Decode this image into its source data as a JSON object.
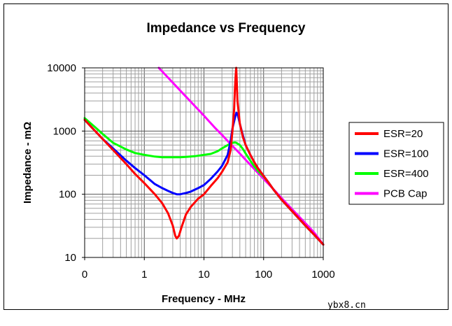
{
  "chart_data": {
    "type": "line",
    "title": "Impedance vs Frequency",
    "xlabel": "Frequency - MHz",
    "ylabel": "Impedance - mΩ",
    "xscale": "log",
    "yscale": "log",
    "xlim": [
      0.1,
      1000
    ],
    "ylim": [
      10,
      10000
    ],
    "x_tick_labels": [
      "0",
      "1",
      "10",
      "100",
      "1000"
    ],
    "x_tick_values": [
      0.1,
      1,
      10,
      100,
      1000
    ],
    "y_tick_labels": [
      "10",
      "100",
      "1000",
      "10000"
    ],
    "y_tick_values": [
      10,
      100,
      1000,
      10000
    ],
    "grid": true,
    "legend_position": "right",
    "series": [
      {
        "name": "ESR=20",
        "color": "#ff0000",
        "points": [
          [
            0.1,
            1500
          ],
          [
            0.15,
            1000
          ],
          [
            0.2,
            750
          ],
          [
            0.3,
            500
          ],
          [
            0.5,
            300
          ],
          [
            0.7,
            210
          ],
          [
            1,
            150
          ],
          [
            1.5,
            100
          ],
          [
            2,
            72
          ],
          [
            2.5,
            50
          ],
          [
            3,
            32
          ],
          [
            3.3,
            22
          ],
          [
            3.5,
            20
          ],
          [
            3.8,
            22
          ],
          [
            4.2,
            30
          ],
          [
            5,
            48
          ],
          [
            6,
            63
          ],
          [
            8,
            85
          ],
          [
            10,
            100
          ],
          [
            13,
            135
          ],
          [
            17,
            180
          ],
          [
            20,
            225
          ],
          [
            25,
            320
          ],
          [
            28,
            500
          ],
          [
            30,
            1000
          ],
          [
            32,
            2200
          ],
          [
            33,
            4500
          ],
          [
            34,
            7500
          ],
          [
            34.7,
            10000
          ],
          [
            35.5,
            6000
          ],
          [
            36.5,
            3000
          ],
          [
            40,
            1300
          ],
          [
            45,
            800
          ],
          [
            50,
            600
          ],
          [
            60,
            420
          ],
          [
            70,
            320
          ],
          [
            80,
            260
          ],
          [
            100,
            195
          ],
          [
            120,
            155
          ],
          [
            150,
            115
          ],
          [
            200,
            82
          ],
          [
            300,
            54
          ],
          [
            500,
            32
          ],
          [
            700,
            23
          ],
          [
            1000,
            16
          ]
        ]
      },
      {
        "name": "ESR=100",
        "color": "#0000ff",
        "points": [
          [
            0.1,
            1500
          ],
          [
            0.15,
            1000
          ],
          [
            0.2,
            750
          ],
          [
            0.3,
            530
          ],
          [
            0.5,
            340
          ],
          [
            0.7,
            260
          ],
          [
            1,
            200
          ],
          [
            1.5,
            145
          ],
          [
            2,
            125
          ],
          [
            2.5,
            113
          ],
          [
            3,
            105
          ],
          [
            3.5,
            100
          ],
          [
            4,
            100
          ],
          [
            5,
            105
          ],
          [
            6,
            110
          ],
          [
            8,
            125
          ],
          [
            10,
            140
          ],
          [
            13,
            175
          ],
          [
            17,
            230
          ],
          [
            20,
            280
          ],
          [
            25,
            420
          ],
          [
            28,
            700
          ],
          [
            30,
            1100
          ],
          [
            33,
            1600
          ],
          [
            35,
            1950
          ],
          [
            37,
            1800
          ],
          [
            40,
            1300
          ],
          [
            45,
            850
          ],
          [
            50,
            600
          ],
          [
            60,
            420
          ],
          [
            70,
            320
          ],
          [
            80,
            260
          ],
          [
            100,
            195
          ],
          [
            120,
            155
          ],
          [
            150,
            115
          ],
          [
            200,
            82
          ],
          [
            300,
            54
          ],
          [
            500,
            32
          ],
          [
            700,
            23
          ],
          [
            1000,
            16
          ]
        ]
      },
      {
        "name": "ESR=400",
        "color": "#00ff00",
        "points": [
          [
            0.1,
            1600
          ],
          [
            0.15,
            1150
          ],
          [
            0.2,
            900
          ],
          [
            0.3,
            650
          ],
          [
            0.5,
            510
          ],
          [
            0.7,
            450
          ],
          [
            1,
            420
          ],
          [
            1.5,
            395
          ],
          [
            2,
            385
          ],
          [
            3,
            385
          ],
          [
            4,
            385
          ],
          [
            5,
            390
          ],
          [
            7,
            400
          ],
          [
            10,
            420
          ],
          [
            13,
            435
          ],
          [
            17,
            480
          ],
          [
            20,
            530
          ],
          [
            25,
            600
          ],
          [
            30,
            650
          ],
          [
            33,
            660
          ],
          [
            35,
            650
          ],
          [
            40,
            600
          ],
          [
            45,
            520
          ],
          [
            50,
            440
          ],
          [
            60,
            340
          ],
          [
            70,
            275
          ],
          [
            80,
            235
          ],
          [
            100,
            190
          ],
          [
            120,
            155
          ],
          [
            150,
            115
          ],
          [
            200,
            82
          ],
          [
            300,
            54
          ],
          [
            500,
            32
          ],
          [
            700,
            23
          ],
          [
            1000,
            16
          ]
        ]
      },
      {
        "name": "PCB Cap",
        "color": "#ff00ff",
        "points": [
          [
            1.75,
            10000
          ],
          [
            2.5,
            7000
          ],
          [
            3.5,
            5000
          ],
          [
            5,
            3500
          ],
          [
            7,
            2500
          ],
          [
            10,
            1750
          ],
          [
            15,
            1150
          ],
          [
            20,
            870
          ],
          [
            30,
            580
          ],
          [
            40,
            440
          ],
          [
            50,
            350
          ],
          [
            70,
            250
          ],
          [
            100,
            175
          ],
          [
            150,
            117
          ],
          [
            200,
            87
          ],
          [
            300,
            58
          ],
          [
            500,
            35
          ],
          [
            700,
            25
          ],
          [
            1000,
            16
          ]
        ]
      }
    ]
  },
  "watermark": "ybx8.cn"
}
